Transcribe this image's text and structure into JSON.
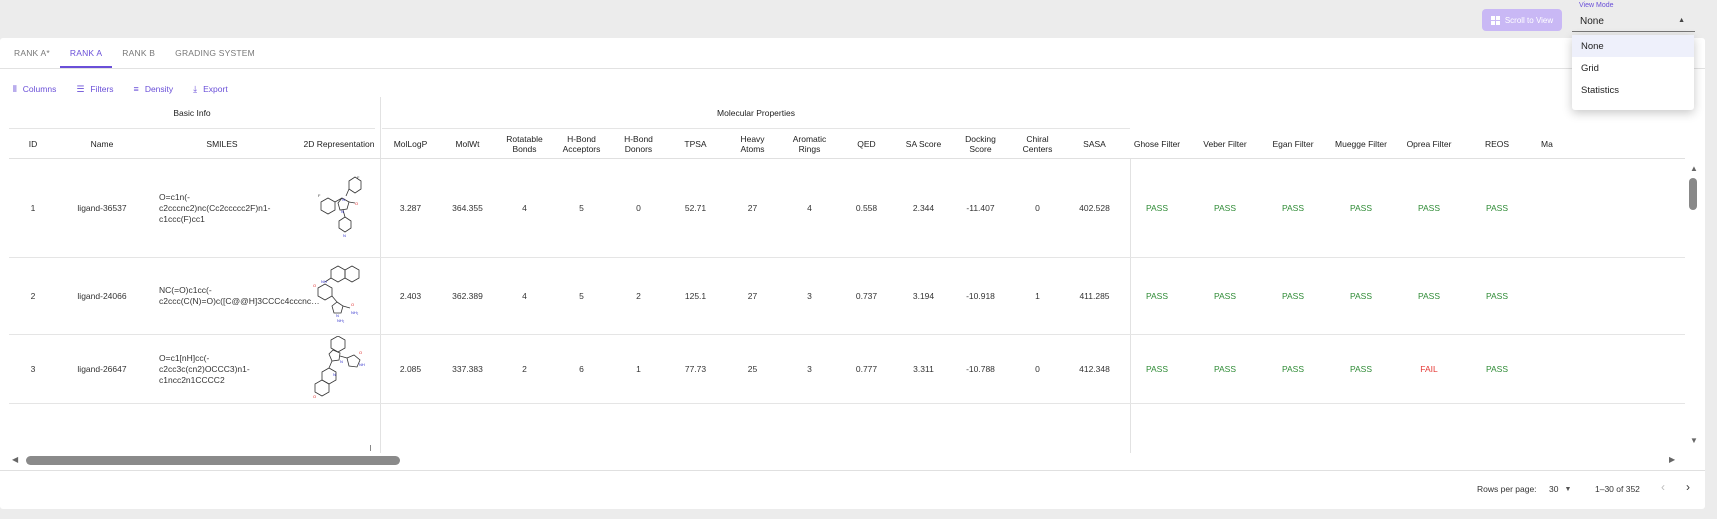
{
  "toolbar_top": {
    "scroll_button_label": "Scroll to View",
    "view_mode_label": "View Mode",
    "view_mode_value": "None",
    "view_mode_options": [
      "None",
      "Grid",
      "Statistics"
    ]
  },
  "tabs": [
    {
      "label": "RANK A*",
      "active": false
    },
    {
      "label": "RANK A",
      "active": true
    },
    {
      "label": "RANK B",
      "active": false
    },
    {
      "label": "GRADING SYSTEM",
      "active": false
    }
  ],
  "grid_toolbar": {
    "columns": "Columns",
    "filters": "Filters",
    "density": "Density",
    "export": "Export"
  },
  "column_groups": {
    "basic_info": "Basic Info",
    "molecular_properties": "Molecular Properties"
  },
  "headers": {
    "id": "ID",
    "name": "Name",
    "smiles": "SMILES",
    "repr": "2D Representation",
    "mollogp": "MolLogP",
    "molwt": "MolWt",
    "rotatable": "Rotatable\nBonds",
    "hb_acceptors": "H-Bond\nAcceptors",
    "hb_donors": "H-Bond\nDonors",
    "tpsa": "TPSA",
    "heavy_atoms": "Heavy\nAtoms",
    "aromatic_rings": "Aromatic\nRings",
    "qed": "QED",
    "sa_score": "SA Score",
    "docking": "Docking\nScore",
    "chiral": "Chiral\nCenters",
    "sasa": "SASA",
    "ghose": "Ghose Filter",
    "veber": "Veber Filter",
    "egan": "Egan Filter",
    "muegge": "Muegge Filter",
    "oprea": "Oprea Filter",
    "reos": "REOS",
    "more": "Ma"
  },
  "rows": [
    {
      "id": "1",
      "name": "ligand-36537",
      "smiles": "O=c1n(-c2cccnc2)nc(Cc2ccccc2F)n1-\nc1ccc(F)cc1",
      "mollogp": "3.287",
      "molwt": "364.355",
      "rotatable": "4",
      "hb_acceptors": "5",
      "hb_donors": "0",
      "tpsa": "52.71",
      "heavy_atoms": "27",
      "aromatic_rings": "4",
      "qed": "0.558",
      "sa_score": "2.344",
      "docking": "-11.407",
      "chiral": "0",
      "sasa": "402.528",
      "ghose": "PASS",
      "veber": "PASS",
      "egan": "PASS",
      "muegge": "PASS",
      "oprea": "PASS",
      "reos": "PASS"
    },
    {
      "id": "2",
      "name": "ligand-24066",
      "smiles": "NC(=O)c1cc(-\nc2ccc(C(N)=O)c([C@@H]3CCCc4cccnc…",
      "mollogp": "2.403",
      "molwt": "362.389",
      "rotatable": "4",
      "hb_acceptors": "5",
      "hb_donors": "2",
      "tpsa": "125.1",
      "heavy_atoms": "27",
      "aromatic_rings": "3",
      "qed": "0.737",
      "sa_score": "3.194",
      "docking": "-10.918",
      "chiral": "1",
      "sasa": "411.285",
      "ghose": "PASS",
      "veber": "PASS",
      "egan": "PASS",
      "muegge": "PASS",
      "oprea": "PASS",
      "reos": "PASS"
    },
    {
      "id": "3",
      "name": "ligand-26647",
      "smiles": "O=c1[nH]cc(-c2cc3c(cn2)OCCC3)n1-\nc1ncc2n1CCCC2",
      "mollogp": "2.085",
      "molwt": "337.383",
      "rotatable": "2",
      "hb_acceptors": "6",
      "hb_donors": "1",
      "tpsa": "77.73",
      "heavy_atoms": "25",
      "aromatic_rings": "3",
      "qed": "0.777",
      "sa_score": "3.311",
      "docking": "-10.788",
      "chiral": "0",
      "sasa": "412.348",
      "ghose": "PASS",
      "veber": "PASS",
      "egan": "PASS",
      "muegge": "PASS",
      "oprea": "FAIL",
      "reos": "PASS"
    }
  ],
  "footer": {
    "rows_per_page_label": "Rows per page:",
    "rows_per_page_value": "30",
    "range": "1–30 of 352"
  },
  "colors": {
    "accent": "#6a4fd8",
    "pass": "#2e8b35",
    "fail": "#e53935"
  }
}
